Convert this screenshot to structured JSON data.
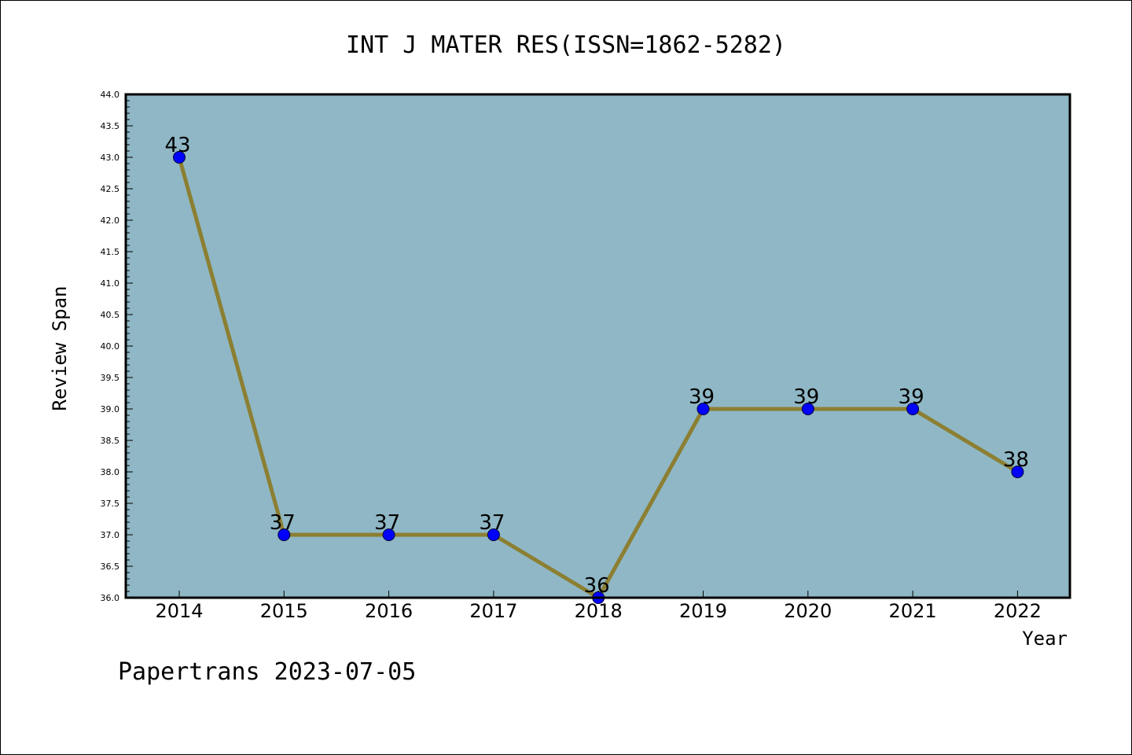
{
  "chart_data": {
    "type": "line",
    "title": "INT J MATER RES(ISSN=1862-5282)",
    "xlabel": "Year",
    "ylabel": "Review Span",
    "x": [
      "2014",
      "2015",
      "2016",
      "2017",
      "2018",
      "2019",
      "2020",
      "2021",
      "2022"
    ],
    "values": [
      43,
      37,
      37,
      37,
      36,
      39,
      39,
      39,
      38
    ],
    "data_labels": [
      "43",
      "37",
      "37",
      "37",
      "36",
      "39",
      "39",
      "39",
      "38"
    ],
    "ylim": [
      36.0,
      44.0
    ],
    "yticks": [
      "36.0",
      "36.5",
      "37.0",
      "37.5",
      "38.0",
      "38.5",
      "39.0",
      "39.5",
      "40.0",
      "40.5",
      "41.0",
      "41.5",
      "42.0",
      "42.5",
      "43.0",
      "43.5",
      "44.0"
    ],
    "grid": false,
    "colors": {
      "plot_background": "#8fb7c5",
      "line": "#8c7f32",
      "marker": "#0000ff"
    }
  },
  "footer": "Papertrans 2023-07-05"
}
